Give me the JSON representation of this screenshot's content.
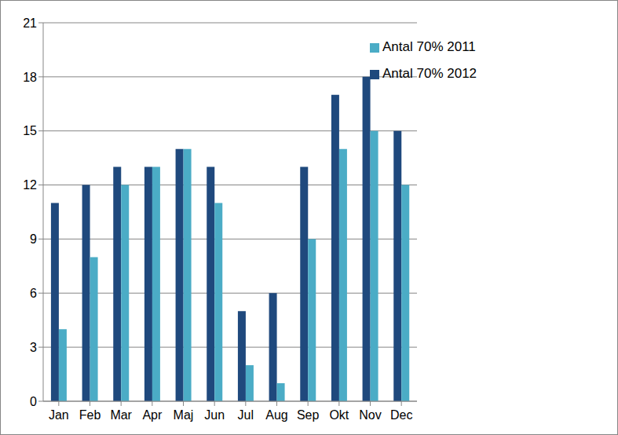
{
  "chart_data": {
    "type": "bar",
    "categories": [
      "Jan",
      "Feb",
      "Mar",
      "Apr",
      "Maj",
      "Jun",
      "Jul",
      "Aug",
      "Sep",
      "Okt",
      "Nov",
      "Dec"
    ],
    "series": [
      {
        "name": "Antal 70% 2012",
        "color": "#1f497d",
        "values": [
          11,
          12,
          13,
          13,
          14,
          13,
          5,
          6,
          13,
          17,
          18,
          15
        ]
      },
      {
        "name": "Antal 70% 2011",
        "color": "#4bacc6",
        "values": [
          4,
          8,
          12,
          13,
          14,
          11,
          2,
          1,
          9,
          14,
          15,
          12
        ]
      }
    ],
    "ylim": [
      0,
      21
    ],
    "yticks": [
      0,
      3,
      6,
      9,
      12,
      15,
      18,
      21
    ],
    "grid": true,
    "legend": "top right"
  }
}
